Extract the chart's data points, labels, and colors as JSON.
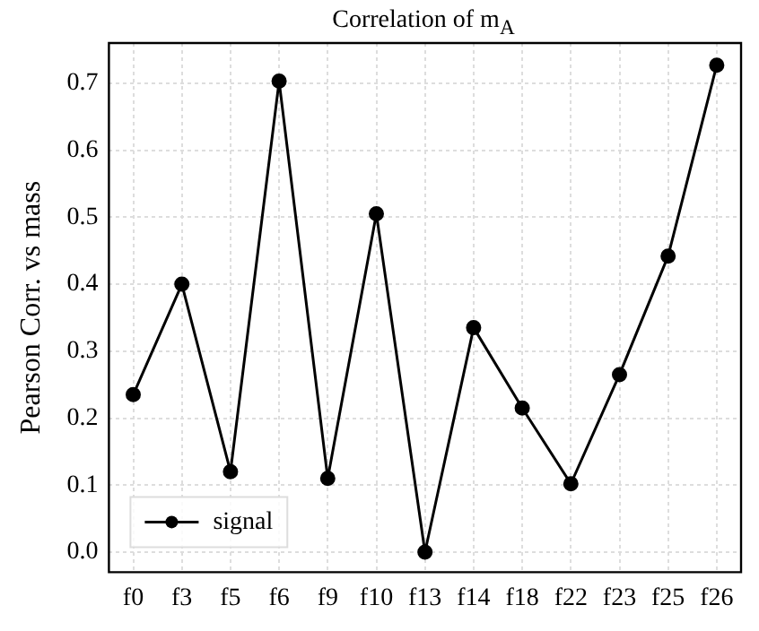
{
  "chart_data": {
    "type": "line",
    "title": "Correlation of m$_{A}$",
    "ylabel": "Pearson Corr. vs mass",
    "categories": [
      "f0",
      "f3",
      "f5",
      "f6",
      "f9",
      "f10",
      "f13",
      "f14",
      "f18",
      "f22",
      "f23",
      "f25",
      "f26"
    ],
    "series": [
      {
        "name": "signal",
        "color": "#000000",
        "values": [
          0.235,
          0.4,
          0.12,
          0.703,
          0.11,
          0.505,
          0.0,
          0.335,
          0.215,
          0.102,
          0.265,
          0.442,
          0.727
        ]
      }
    ],
    "ylim": [
      -0.03,
      0.76
    ],
    "yticks": [
      {
        "value": 0,
        "label": "0.0"
      },
      0.1,
      0.2,
      0.3,
      0.4,
      0.5,
      0.6,
      0.7
    ],
    "grid": true,
    "legend": "bottom left",
    "marker": "circle",
    "line_style": "solid"
  }
}
